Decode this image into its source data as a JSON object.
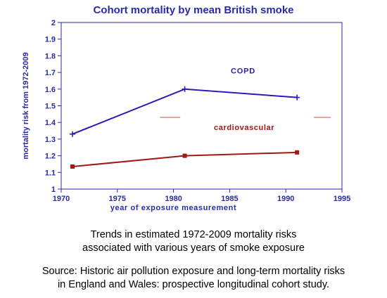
{
  "colors": {
    "axis": "#2a2aa8",
    "copd": "#2a1ab8",
    "cardiovascular": "#a01818",
    "marker_dash": "#f08888",
    "caption": "#000000"
  },
  "chart_data": {
    "type": "line",
    "title": "Cohort mortality by mean British smoke",
    "xlabel": "year of exposure measurement",
    "ylabel": "mortality risk from 1972-2009",
    "xlim": [
      1970,
      1995
    ],
    "ylim": [
      1,
      2
    ],
    "xticks": [
      "1970",
      "1975",
      "1980",
      "1985",
      "1990",
      "1995"
    ],
    "yticks": [
      "1",
      "1.1",
      "1.2",
      "1.3",
      "1.4",
      "1.5",
      "1.6",
      "1.7",
      "1.8",
      "1.9",
      "2"
    ],
    "grid": false,
    "series": [
      {
        "name": "COPD",
        "color": "#2a1ab8",
        "marker": "plus",
        "points": [
          {
            "x": 1971,
            "y": 1.33
          },
          {
            "x": 1981,
            "y": 1.6
          },
          {
            "x": 1991,
            "y": 1.55
          }
        ]
      },
      {
        "name": "cardiovascular",
        "color": "#a01818",
        "marker": "square",
        "points": [
          {
            "x": 1971,
            "y": 1.135
          },
          {
            "x": 1981,
            "y": 1.2
          },
          {
            "x": 1991,
            "y": 1.22
          }
        ]
      }
    ],
    "annotations": [
      {
        "type": "dash",
        "x": [
          1978.8,
          1980.6
        ],
        "y": 1.43,
        "color": "#f08888"
      },
      {
        "type": "dash",
        "x": [
          1992.5,
          1994.0
        ],
        "y": 1.43,
        "color": "#f08888"
      }
    ]
  },
  "caption": {
    "line1": "Trends in estimated 1972-2009 mortality risks",
    "line2": "associated with various years of smoke exposure"
  },
  "source": {
    "line1": "Source: Historic air pollution exposure and long-term mortality risks",
    "line2": "in England and Wales: prospective longitudinal cohort study."
  }
}
